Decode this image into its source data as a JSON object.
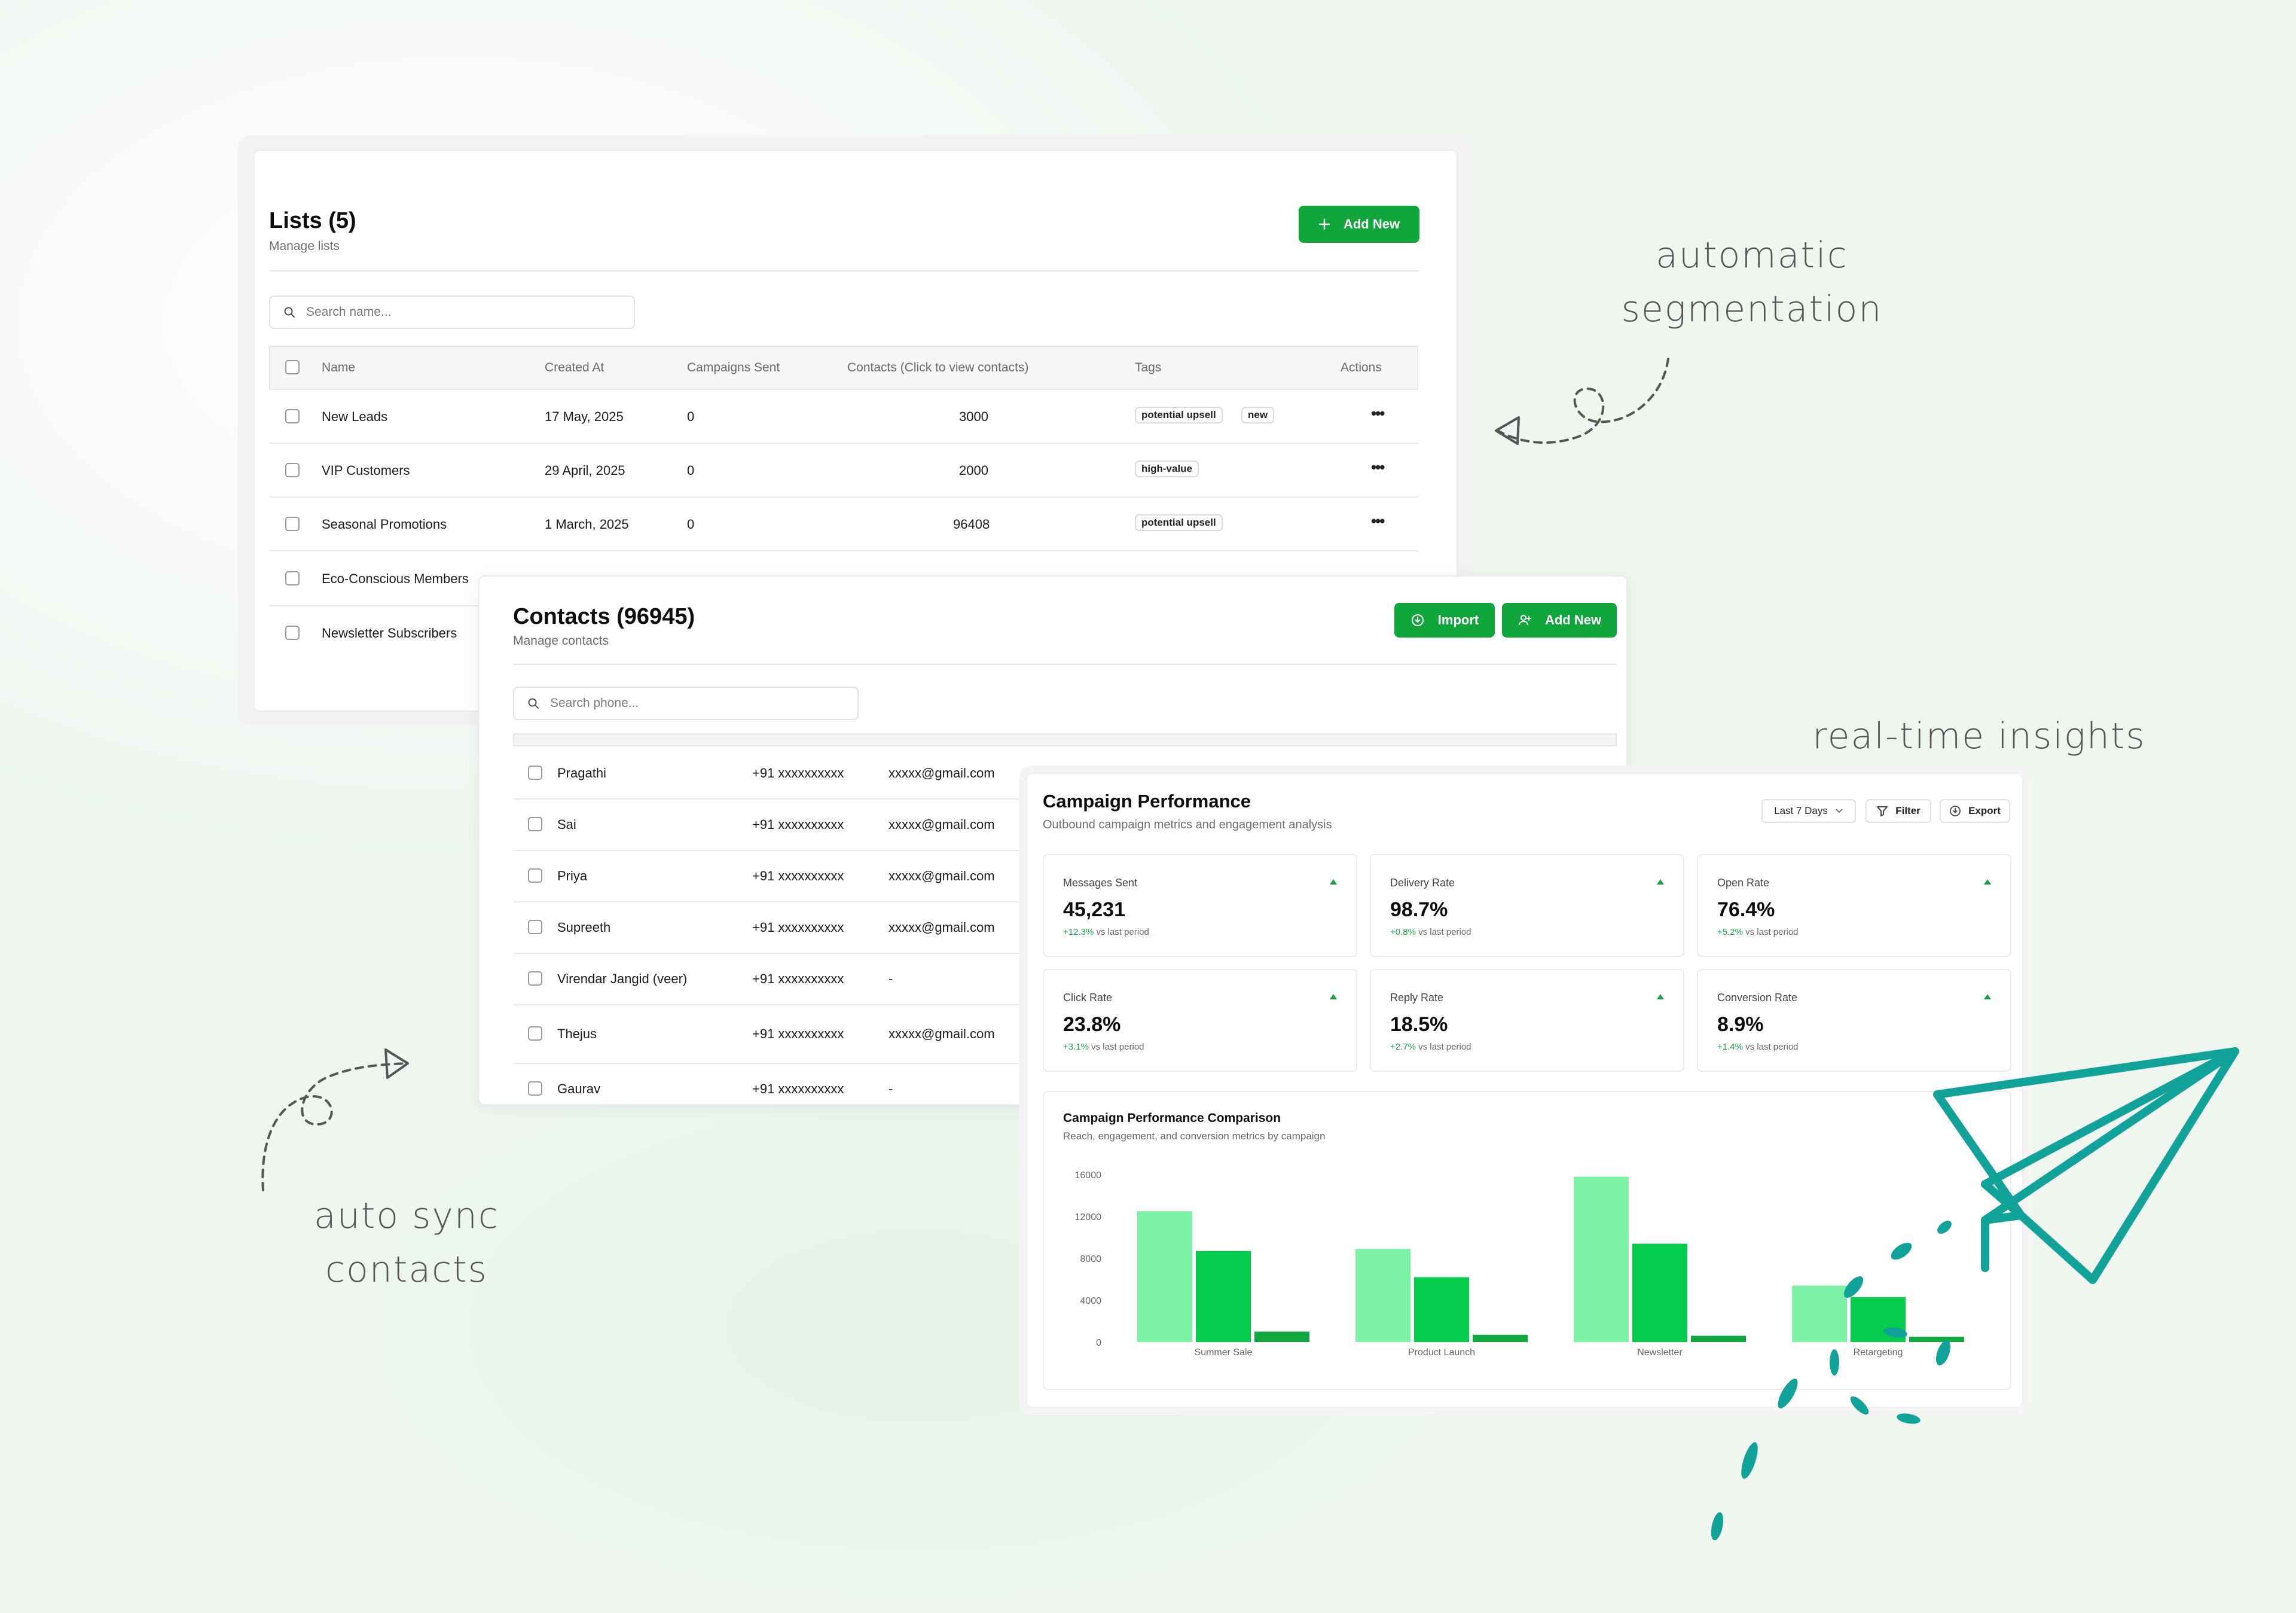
{
  "notes": {
    "segmentation_line1": "automatic",
    "segmentation_line2": "segmentation",
    "insights": "real-time insights",
    "sync_line1": "auto sync",
    "sync_line2": "contacts"
  },
  "lists": {
    "title": "Lists (5)",
    "subtitle": "Manage lists",
    "add_new_label": "Add New",
    "search_placeholder": "Search name...",
    "columns": [
      "Name",
      "Created At",
      "Campaigns Sent",
      "Contacts (Click to view contacts)",
      "Tags",
      "Actions"
    ],
    "rows": [
      {
        "name": "New Leads",
        "created": "17 May, 2025",
        "campaigns": "0",
        "contacts": "3000",
        "tags": [
          "potential upsell",
          "new"
        ]
      },
      {
        "name": "VIP Customers",
        "created": "29 April, 2025",
        "campaigns": "0",
        "contacts": "2000",
        "tags": [
          "high-value"
        ]
      },
      {
        "name": "Seasonal Promotions",
        "created": "1 March, 2025",
        "campaigns": "0",
        "contacts": "96408",
        "tags": [
          "potential upsell"
        ]
      },
      {
        "name": "Eco-Conscious Members"
      },
      {
        "name": "Newsletter Subscribers"
      }
    ],
    "actions_glyph": "•••"
  },
  "contacts": {
    "title": "Contacts (96945)",
    "subtitle": "Manage contacts",
    "import_label": "Import",
    "add_new_label": "Add New",
    "search_placeholder": "Search phone...",
    "rows": [
      {
        "name": "Pragathi",
        "phone": "+91 xxxxxxxxxx",
        "email": "xxxxx@gmail.com"
      },
      {
        "name": "Sai",
        "phone": "+91 xxxxxxxxxx",
        "email": "xxxxx@gmail.com"
      },
      {
        "name": "Priya",
        "phone": "+91 xxxxxxxxxx",
        "email": "xxxxx@gmail.com"
      },
      {
        "name": "Supreeth",
        "phone": "+91 xxxxxxxxxx",
        "email": "xxxxx@gmail.com"
      },
      {
        "name": "Virendar Jangid (veer)",
        "phone": "+91 xxxxxxxxxx",
        "email": "-"
      },
      {
        "name": "Thejus",
        "phone": "+91 xxxxxxxxxx",
        "email": "xxxxx@gmail.com"
      },
      {
        "name": "Gaurav",
        "phone": "+91 xxxxxxxxxx",
        "email": "-"
      }
    ]
  },
  "campaign": {
    "title": "Campaign Performance",
    "subtitle": "Outbound campaign metrics and engagement analysis",
    "period_label": "Last 7 Days",
    "filter_label": "Filter",
    "export_label": "Export",
    "metrics": [
      {
        "label": "Messages Sent",
        "value": "45,231",
        "delta": "+12.3%",
        "delta_suffix": "vs last period"
      },
      {
        "label": "Delivery Rate",
        "value": "98.7%",
        "delta": "+0.8%",
        "delta_suffix": "vs last period"
      },
      {
        "label": "Open Rate",
        "value": "76.4%",
        "delta": "+5.2%",
        "delta_suffix": "vs last period"
      },
      {
        "label": "Click Rate",
        "value": "23.8%",
        "delta": "+3.1%",
        "delta_suffix": "vs last period"
      },
      {
        "label": "Reply Rate",
        "value": "18.5%",
        "delta": "+2.7%",
        "delta_suffix": "vs last period"
      },
      {
        "label": "Conversion Rate",
        "value": "8.9%",
        "delta": "+1.4%",
        "delta_suffix": "vs last period"
      }
    ],
    "trend_color": "#1aa54a"
  },
  "chart_data": {
    "type": "bar",
    "title": "Campaign Performance Comparison",
    "subtitle": "Reach, engagement, and conversion metrics by campaign",
    "categories": [
      "Summer Sale",
      "Product Launch",
      "Newsletter",
      "Retargeting"
    ],
    "series": [
      {
        "values": [
          12500,
          8900,
          15800,
          5400
        ],
        "color": "#7df2a6"
      },
      {
        "values": [
          8700,
          6200,
          9400,
          4300
        ],
        "color": "#06cc4e"
      },
      {
        "values": [
          1000,
          700,
          600,
          500
        ],
        "color": "#0fa83f"
      }
    ],
    "yticks": [
      "0",
      "4000",
      "8000",
      "12000",
      "16000"
    ],
    "ylim": [
      0,
      16000
    ],
    "grid": false,
    "legend": "none"
  },
  "colors": {
    "brand_green": "#11a63b",
    "plane_teal": "#11a299"
  }
}
